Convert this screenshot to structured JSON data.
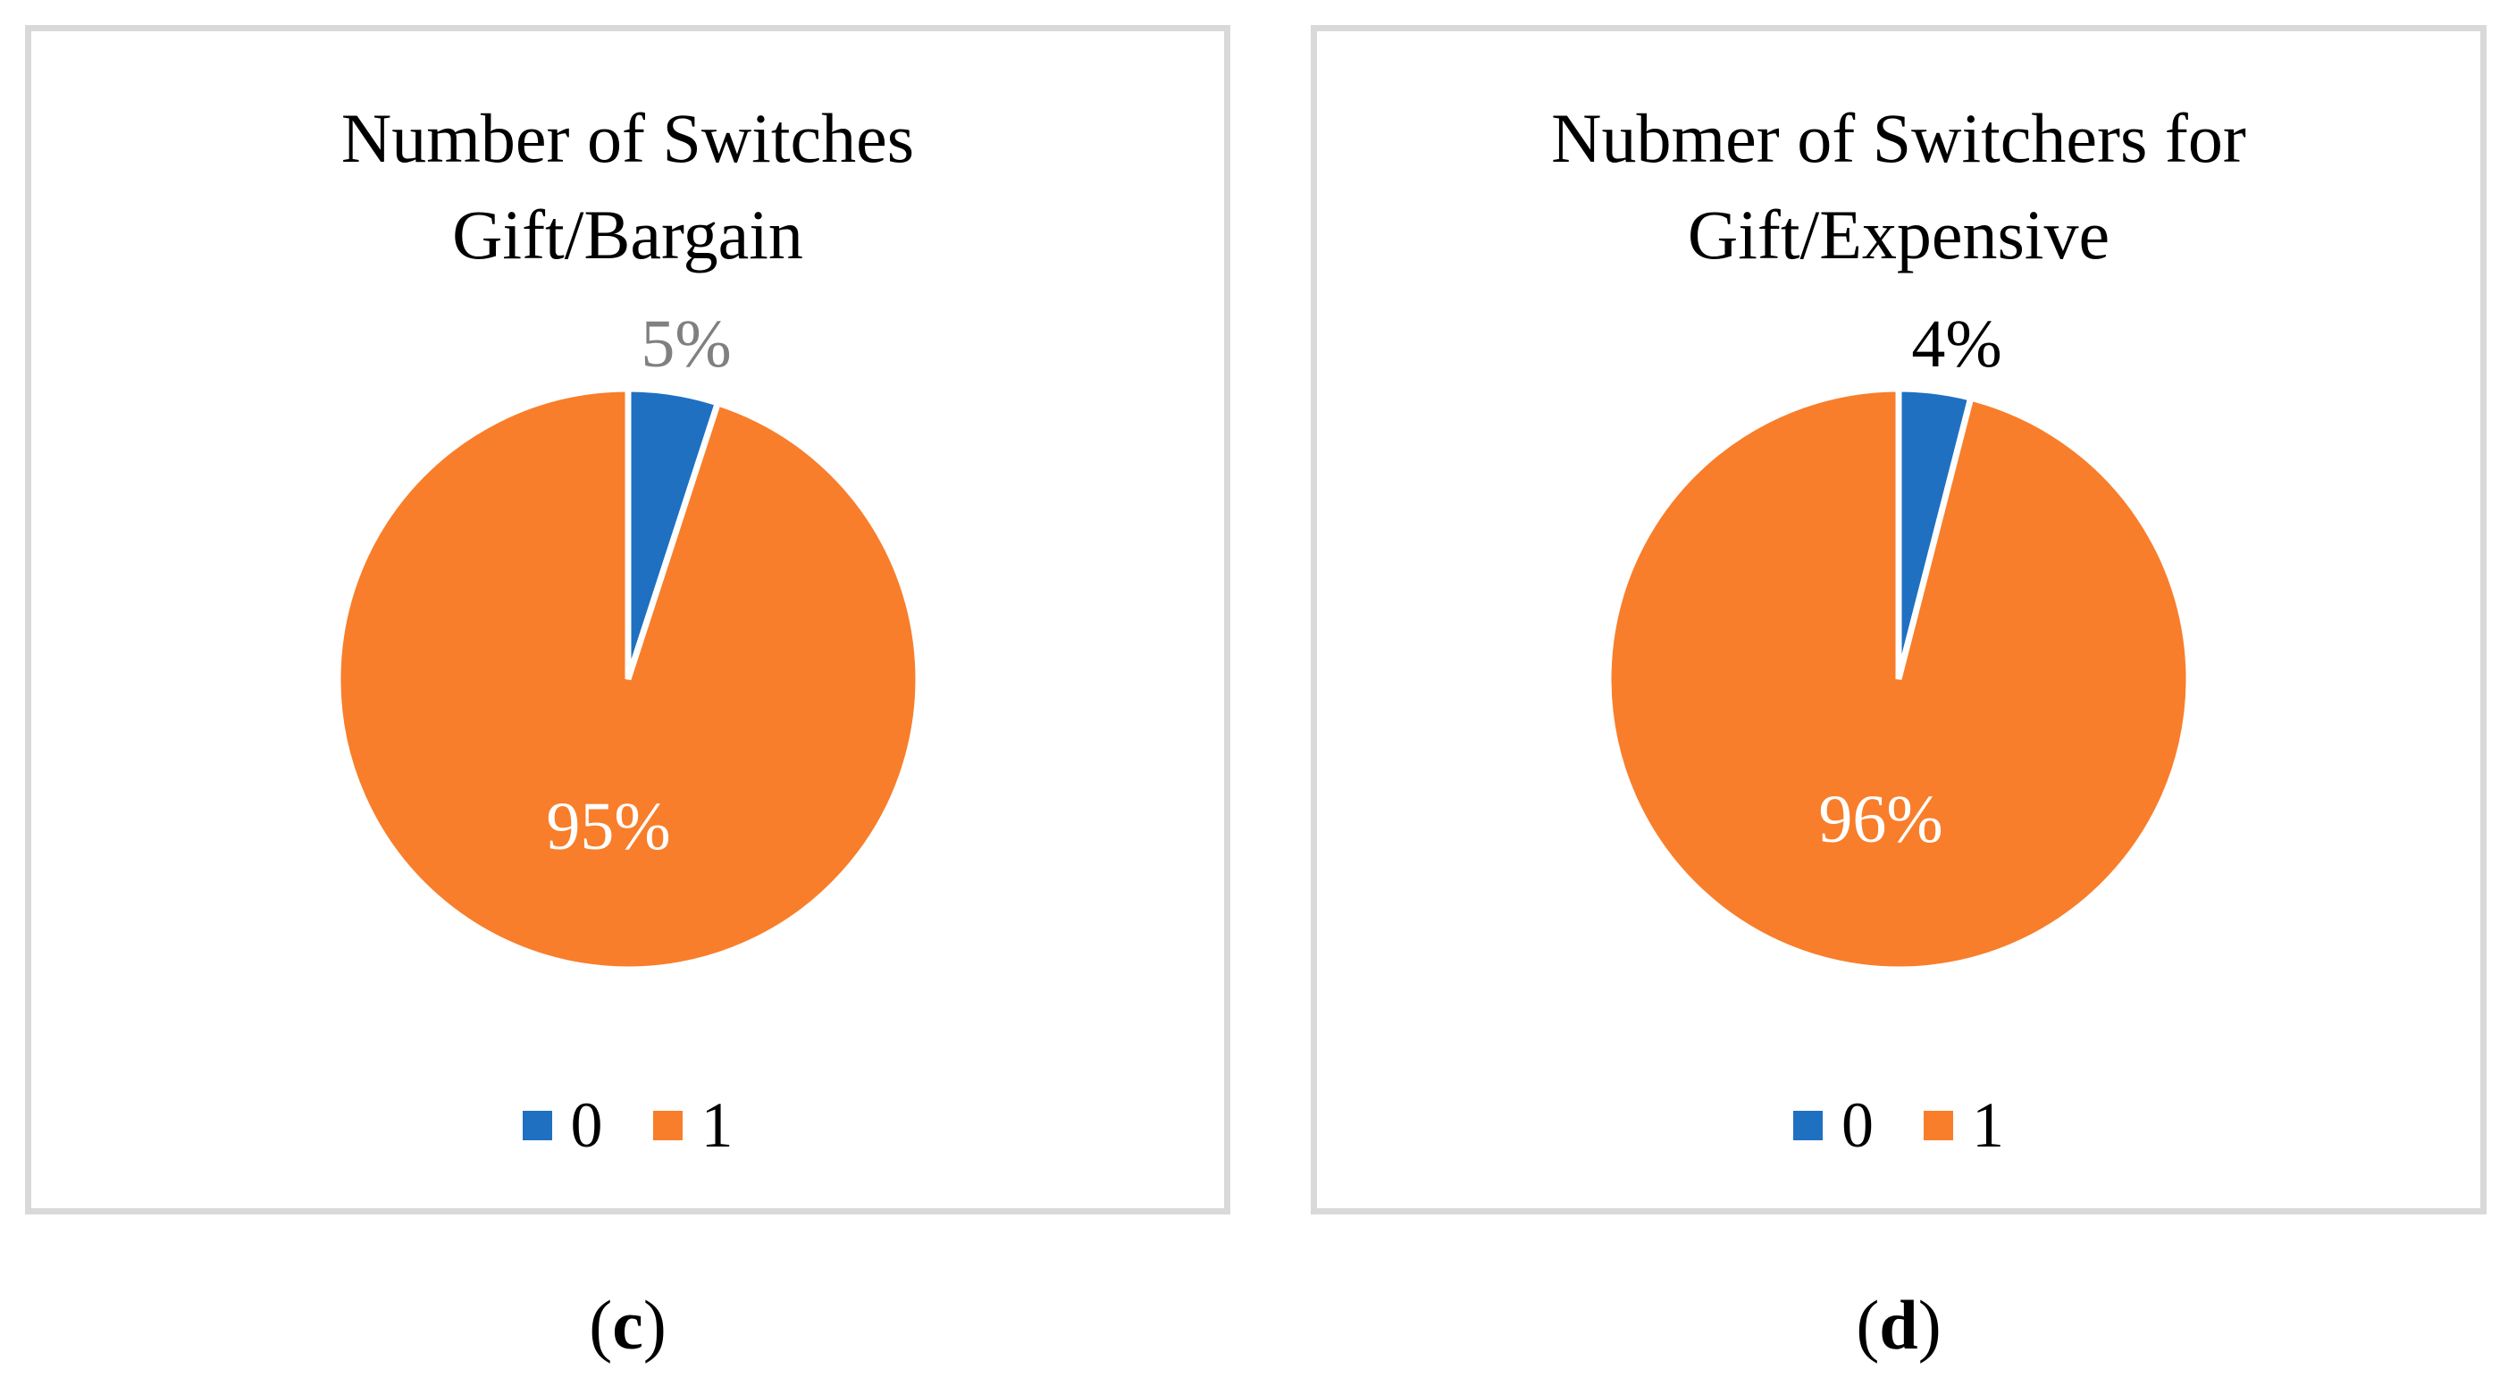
{
  "figure": {
    "captions": {
      "c": {
        "open": "(",
        "letter": "c",
        "close": ")"
      },
      "d": {
        "open": "(",
        "letter": "d",
        "close": ")"
      }
    },
    "panel_border_color": "#D9D9D9",
    "background_color": "#FFFFFF"
  },
  "chart_data": [
    {
      "type": "pie",
      "title": "Number of Switches Gift/Bargain",
      "title_lines": [
        "Number of Switches",
        "Gift/Bargain"
      ],
      "legend_labels": [
        "0",
        "1"
      ],
      "values": [
        5,
        95
      ],
      "unit": "percent",
      "colors": [
        "#1F70C1",
        "#F87E2B"
      ],
      "data_labels": [
        "5%",
        "95%"
      ],
      "data_label_colors": [
        "#808080",
        "#FFFFFF"
      ],
      "slice_border_color": "#FFFFFF",
      "start_angle_deg": 0,
      "direction": "clockwise",
      "legend_position": "bottom"
    },
    {
      "type": "pie",
      "title": "Nubmer of Switchers for Gift/Expensive",
      "title_lines": [
        "Nubmer of Switchers for",
        "Gift/Expensive"
      ],
      "legend_labels": [
        "0",
        "1"
      ],
      "values": [
        4,
        96
      ],
      "unit": "percent",
      "colors": [
        "#1F70C1",
        "#F87E2B"
      ],
      "data_labels": [
        "4%",
        "96%"
      ],
      "data_label_colors": [
        "#000000",
        "#FFFFFF"
      ],
      "slice_border_color": "#FFFFFF",
      "start_angle_deg": 0,
      "direction": "clockwise",
      "legend_position": "bottom"
    }
  ]
}
